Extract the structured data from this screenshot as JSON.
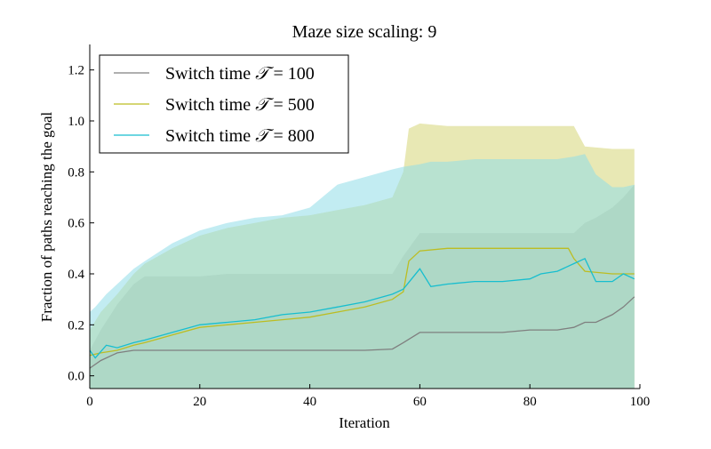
{
  "chart_data": {
    "type": "line",
    "title": "Maze size scaling: 9",
    "xlabel": "Iteration",
    "ylabel": "Fraction of paths reaching the goal",
    "xlim": [
      0,
      100
    ],
    "ylim": [
      -0.05,
      1.3
    ],
    "xticks": [
      "0",
      "20",
      "40",
      "60",
      "80",
      "100"
    ],
    "yticks": [
      "0.0",
      "0.2",
      "0.4",
      "0.6",
      "0.8",
      "1.0",
      "1.2"
    ],
    "legend_position": "top-left",
    "grid": false,
    "series": [
      {
        "name": "Switch time 𝒯 = 100",
        "legend_prefix": "Switch time ",
        "legend_symbol": "𝒯",
        "legend_suffix": " = 100",
        "color": "#7f7f7f",
        "band_color": "#a8a8a8",
        "x": [
          0,
          2,
          5,
          8,
          10,
          15,
          20,
          25,
          30,
          35,
          40,
          45,
          50,
          55,
          57,
          60,
          65,
          70,
          75,
          80,
          85,
          88,
          90,
          92,
          95,
          97,
          99
        ],
        "y": [
          0.03,
          0.06,
          0.09,
          0.1,
          0.1,
          0.1,
          0.1,
          0.1,
          0.1,
          0.1,
          0.1,
          0.1,
          0.1,
          0.105,
          0.13,
          0.17,
          0.17,
          0.17,
          0.17,
          0.18,
          0.18,
          0.19,
          0.21,
          0.21,
          0.24,
          0.27,
          0.31
        ],
        "upper": [
          0.1,
          0.18,
          0.28,
          0.36,
          0.39,
          0.39,
          0.39,
          0.4,
          0.4,
          0.4,
          0.4,
          0.4,
          0.4,
          0.4,
          0.47,
          0.56,
          0.56,
          0.56,
          0.56,
          0.56,
          0.56,
          0.56,
          0.6,
          0.62,
          0.66,
          0.7,
          0.75
        ],
        "lower": [
          -0.05,
          -0.05,
          -0.05,
          -0.05,
          -0.05,
          -0.05,
          -0.05,
          -0.05,
          -0.05,
          -0.05,
          -0.05,
          -0.05,
          -0.05,
          -0.05,
          -0.05,
          -0.05,
          -0.05,
          -0.05,
          -0.05,
          -0.05,
          -0.05,
          -0.05,
          -0.05,
          -0.05,
          -0.05,
          -0.05,
          -0.05
        ]
      },
      {
        "name": "Switch time 𝒯 = 500",
        "legend_prefix": "Switch time ",
        "legend_symbol": "𝒯",
        "legend_suffix": " = 500",
        "color": "#bcbd22",
        "band_color": "#d6d676",
        "x": [
          0,
          2,
          5,
          8,
          10,
          15,
          20,
          25,
          30,
          35,
          40,
          45,
          50,
          55,
          57,
          58,
          60,
          65,
          70,
          75,
          80,
          85,
          87,
          88,
          90,
          95,
          99
        ],
        "y": [
          0.08,
          0.09,
          0.1,
          0.12,
          0.13,
          0.16,
          0.19,
          0.2,
          0.21,
          0.22,
          0.23,
          0.25,
          0.27,
          0.3,
          0.33,
          0.45,
          0.49,
          0.5,
          0.5,
          0.5,
          0.5,
          0.5,
          0.5,
          0.46,
          0.41,
          0.4,
          0.4
        ],
        "upper": [
          0.18,
          0.25,
          0.32,
          0.4,
          0.44,
          0.5,
          0.55,
          0.58,
          0.6,
          0.62,
          0.63,
          0.65,
          0.67,
          0.7,
          0.8,
          0.97,
          0.99,
          0.98,
          0.98,
          0.98,
          0.98,
          0.98,
          0.98,
          0.98,
          0.9,
          0.89,
          0.89
        ],
        "lower": [
          -0.05,
          -0.05,
          -0.05,
          -0.05,
          -0.05,
          -0.05,
          -0.05,
          -0.05,
          -0.05,
          -0.05,
          -0.05,
          -0.05,
          -0.05,
          -0.05,
          -0.05,
          -0.05,
          -0.05,
          -0.05,
          -0.05,
          -0.05,
          -0.05,
          -0.05,
          -0.05,
          -0.05,
          -0.05,
          -0.05,
          -0.05
        ]
      },
      {
        "name": "Switch time 𝒯 = 800",
        "legend_prefix": "Switch time ",
        "legend_symbol": "𝒯",
        "legend_suffix": " = 800",
        "color": "#17becf",
        "band_color": "#8fdde8",
        "x": [
          0,
          1,
          3,
          5,
          8,
          10,
          15,
          20,
          25,
          30,
          35,
          40,
          45,
          50,
          55,
          57,
          60,
          62,
          65,
          70,
          75,
          80,
          82,
          85,
          88,
          90,
          92,
          95,
          97,
          99
        ],
        "y": [
          0.1,
          0.07,
          0.12,
          0.11,
          0.13,
          0.14,
          0.17,
          0.2,
          0.21,
          0.22,
          0.24,
          0.25,
          0.27,
          0.29,
          0.32,
          0.34,
          0.42,
          0.35,
          0.36,
          0.37,
          0.37,
          0.38,
          0.4,
          0.41,
          0.44,
          0.46,
          0.37,
          0.37,
          0.4,
          0.38
        ],
        "upper": [
          0.25,
          0.27,
          0.32,
          0.36,
          0.42,
          0.45,
          0.52,
          0.57,
          0.6,
          0.62,
          0.63,
          0.66,
          0.75,
          0.78,
          0.81,
          0.82,
          0.83,
          0.84,
          0.84,
          0.85,
          0.85,
          0.85,
          0.85,
          0.85,
          0.86,
          0.87,
          0.79,
          0.74,
          0.74,
          0.75
        ],
        "lower": [
          -0.05,
          -0.05,
          -0.05,
          -0.05,
          -0.05,
          -0.05,
          -0.05,
          -0.05,
          -0.05,
          -0.05,
          -0.05,
          -0.05,
          -0.05,
          -0.05,
          -0.05,
          -0.05,
          -0.05,
          -0.05,
          -0.05,
          -0.05,
          -0.05,
          -0.05,
          -0.05,
          -0.05,
          -0.05,
          -0.05,
          -0.05,
          -0.05,
          -0.05,
          -0.05
        ]
      }
    ]
  }
}
